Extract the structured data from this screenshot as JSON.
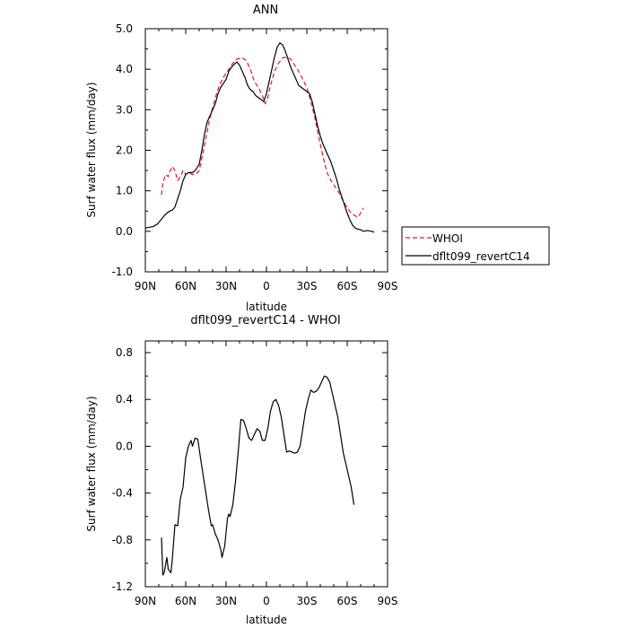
{
  "chart_data": [
    {
      "type": "line",
      "title": "ANN",
      "xlabel": "latitude",
      "ylabel": "Surf water flux (mm/day)",
      "xlim": [
        90,
        -90
      ],
      "ylim": [
        -1.0,
        5.0
      ],
      "x_ticks": [
        {
          "value": 90,
          "label": "90N"
        },
        {
          "value": 60,
          "label": "60N"
        },
        {
          "value": 30,
          "label": "30N"
        },
        {
          "value": 0,
          "label": "0"
        },
        {
          "value": -30,
          "label": "30S"
        },
        {
          "value": -60,
          "label": "60S"
        },
        {
          "value": -90,
          "label": "90S"
        }
      ],
      "y_ticks": [
        {
          "value": -1.0,
          "label": "-1.0"
        },
        {
          "value": 0.0,
          "label": "0.0"
        },
        {
          "value": 1.0,
          "label": "1.0"
        },
        {
          "value": 2.0,
          "label": "2.0"
        },
        {
          "value": 3.0,
          "label": "3.0"
        },
        {
          "value": 4.0,
          "label": "4.0"
        },
        {
          "value": 5.0,
          "label": "5.0"
        }
      ],
      "legend_position": "right, outside plot",
      "series": [
        {
          "name": "WHOI",
          "color": "#e31a1c",
          "dash": "dashed",
          "points": [
            [
              78,
              0.9
            ],
            [
              77,
              1.2
            ],
            [
              75,
              1.4
            ],
            [
              73,
              1.35
            ],
            [
              72,
              1.45
            ],
            [
              70,
              1.6
            ],
            [
              68,
              1.5
            ],
            [
              66,
              1.25
            ],
            [
              64,
              1.35
            ],
            [
              62,
              1.5
            ],
            [
              60,
              1.4
            ],
            [
              58,
              1.45
            ],
            [
              55,
              1.4
            ],
            [
              52,
              1.42
            ],
            [
              50,
              1.5
            ],
            [
              48,
              1.8
            ],
            [
              45,
              2.3
            ],
            [
              42,
              2.8
            ],
            [
              38,
              3.3
            ],
            [
              35,
              3.6
            ],
            [
              32,
              3.8
            ],
            [
              28,
              4.0
            ],
            [
              25,
              4.15
            ],
            [
              22,
              4.25
            ],
            [
              18,
              4.28
            ],
            [
              15,
              4.22
            ],
            [
              12,
              4.0
            ],
            [
              9,
              3.7
            ],
            [
              6,
              3.55
            ],
            [
              3,
              3.35
            ],
            [
              1,
              3.15
            ],
            [
              -1,
              3.3
            ],
            [
              -3,
              3.6
            ],
            [
              -6,
              3.95
            ],
            [
              -9,
              4.15
            ],
            [
              -12,
              4.28
            ],
            [
              -15,
              4.3
            ],
            [
              -18,
              4.25
            ],
            [
              -21,
              4.1
            ],
            [
              -24,
              3.95
            ],
            [
              -27,
              3.75
            ],
            [
              -30,
              3.55
            ],
            [
              -33,
              3.2
            ],
            [
              -36,
              2.8
            ],
            [
              -39,
              2.3
            ],
            [
              -42,
              1.85
            ],
            [
              -45,
              1.45
            ],
            [
              -48,
              1.25
            ],
            [
              -51,
              1.1
            ],
            [
              -54,
              0.95
            ],
            [
              -57,
              0.75
            ],
            [
              -60,
              0.58
            ],
            [
              -63,
              0.45
            ],
            [
              -66,
              0.38
            ],
            [
              -68,
              0.35
            ],
            [
              -70,
              0.45
            ],
            [
              -72,
              0.58
            ]
          ]
        },
        {
          "name": "dflt099_revertC14",
          "color": "#000000",
          "dash": "solid",
          "points": [
            [
              90,
              0.08
            ],
            [
              87,
              0.1
            ],
            [
              84,
              0.12
            ],
            [
              81,
              0.18
            ],
            [
              78,
              0.3
            ],
            [
              75,
              0.42
            ],
            [
              72,
              0.5
            ],
            [
              70,
              0.52
            ],
            [
              68,
              0.6
            ],
            [
              66,
              0.8
            ],
            [
              64,
              1.0
            ],
            [
              62,
              1.25
            ],
            [
              60,
              1.4
            ],
            [
              58,
              1.45
            ],
            [
              55,
              1.45
            ],
            [
              53,
              1.5
            ],
            [
              50,
              1.65
            ],
            [
              48,
              2.0
            ],
            [
              46,
              2.4
            ],
            [
              44,
              2.7
            ],
            [
              42,
              2.85
            ],
            [
              40,
              3.0
            ],
            [
              38,
              3.15
            ],
            [
              36,
              3.4
            ],
            [
              34,
              3.55
            ],
            [
              32,
              3.65
            ],
            [
              30,
              3.75
            ],
            [
              28,
              3.95
            ],
            [
              26,
              4.05
            ],
            [
              24,
              4.12
            ],
            [
              22,
              4.18
            ],
            [
              20,
              4.1
            ],
            [
              18,
              3.95
            ],
            [
              16,
              3.8
            ],
            [
              14,
              3.6
            ],
            [
              12,
              3.5
            ],
            [
              10,
              3.45
            ],
            [
              8,
              3.35
            ],
            [
              6,
              3.3
            ],
            [
              4,
              3.25
            ],
            [
              2,
              3.2
            ],
            [
              0,
              3.4
            ],
            [
              -2,
              3.7
            ],
            [
              -4,
              4.0
            ],
            [
              -6,
              4.3
            ],
            [
              -8,
              4.55
            ],
            [
              -10,
              4.65
            ],
            [
              -12,
              4.6
            ],
            [
              -14,
              4.45
            ],
            [
              -16,
              4.25
            ],
            [
              -18,
              4.05
            ],
            [
              -20,
              3.9
            ],
            [
              -22,
              3.75
            ],
            [
              -24,
              3.6
            ],
            [
              -26,
              3.55
            ],
            [
              -28,
              3.5
            ],
            [
              -30,
              3.45
            ],
            [
              -32,
              3.4
            ],
            [
              -34,
              3.2
            ],
            [
              -36,
              2.9
            ],
            [
              -38,
              2.6
            ],
            [
              -40,
              2.35
            ],
            [
              -42,
              2.15
            ],
            [
              -44,
              2.0
            ],
            [
              -46,
              1.85
            ],
            [
              -48,
              1.7
            ],
            [
              -50,
              1.5
            ],
            [
              -52,
              1.3
            ],
            [
              -54,
              1.05
            ],
            [
              -56,
              0.85
            ],
            [
              -58,
              0.65
            ],
            [
              -60,
              0.45
            ],
            [
              -62,
              0.28
            ],
            [
              -64,
              0.15
            ],
            [
              -66,
              0.08
            ],
            [
              -68,
              0.05
            ],
            [
              -70,
              0.04
            ],
            [
              -72,
              0.0
            ],
            [
              -75,
              0.02
            ],
            [
              -78,
              0.0
            ],
            [
              -80,
              -0.02
            ]
          ]
        }
      ]
    },
    {
      "type": "line",
      "title": "dflt099_revertC14 - WHOI",
      "xlabel": "latitude",
      "ylabel": "Surf water flux (mm/day)",
      "xlim": [
        90,
        -90
      ],
      "ylim": [
        -1.2,
        0.9
      ],
      "x_ticks": [
        {
          "value": 90,
          "label": "90N"
        },
        {
          "value": 60,
          "label": "60N"
        },
        {
          "value": 30,
          "label": "30N"
        },
        {
          "value": 0,
          "label": "0"
        },
        {
          "value": -30,
          "label": "30S"
        },
        {
          "value": -60,
          "label": "60S"
        },
        {
          "value": -90,
          "label": "90S"
        }
      ],
      "y_ticks": [
        {
          "value": -1.2,
          "label": "-1.2"
        },
        {
          "value": -0.8,
          "label": "-0.8"
        },
        {
          "value": -0.4,
          "label": "-0.4"
        },
        {
          "value": 0.0,
          "label": "0.0"
        },
        {
          "value": 0.4,
          "label": "0.4"
        },
        {
          "value": 0.8,
          "label": "0.8"
        }
      ],
      "series": [
        {
          "color": "#000000",
          "dash": "solid",
          "points": [
            [
              78,
              -0.78
            ],
            [
              77,
              -1.1
            ],
            [
              76,
              -1.08
            ],
            [
              74,
              -0.95
            ],
            [
              73,
              -1.05
            ],
            [
              71,
              -1.08
            ],
            [
              70,
              -0.97
            ],
            [
              68,
              -0.67
            ],
            [
              66,
              -0.68
            ],
            [
              64,
              -0.45
            ],
            [
              62,
              -0.35
            ],
            [
              60,
              -0.1
            ],
            [
              58,
              0.0
            ],
            [
              56,
              0.05
            ],
            [
              55,
              0.0
            ],
            [
              53,
              0.07
            ],
            [
              51,
              0.06
            ],
            [
              49,
              -0.1
            ],
            [
              47,
              -0.25
            ],
            [
              45,
              -0.4
            ],
            [
              43,
              -0.55
            ],
            [
              41,
              -0.68
            ],
            [
              40,
              -0.67
            ],
            [
              38,
              -0.75
            ],
            [
              36,
              -0.8
            ],
            [
              34,
              -0.88
            ],
            [
              33,
              -0.95
            ],
            [
              31,
              -0.85
            ],
            [
              29,
              -0.62
            ],
            [
              28,
              -0.58
            ],
            [
              27,
              -0.6
            ],
            [
              25,
              -0.5
            ],
            [
              23,
              -0.3
            ],
            [
              21,
              -0.05
            ],
            [
              19,
              0.23
            ],
            [
              17,
              0.22
            ],
            [
              15,
              0.15
            ],
            [
              13,
              0.07
            ],
            [
              11,
              0.05
            ],
            [
              9,
              0.1
            ],
            [
              7,
              0.15
            ],
            [
              5,
              0.13
            ],
            [
              3,
              0.05
            ],
            [
              1,
              0.05
            ],
            [
              -1,
              0.15
            ],
            [
              -3,
              0.3
            ],
            [
              -5,
              0.38
            ],
            [
              -7,
              0.4
            ],
            [
              -9,
              0.35
            ],
            [
              -11,
              0.25
            ],
            [
              -13,
              0.1
            ],
            [
              -15,
              -0.05
            ],
            [
              -17,
              -0.04
            ],
            [
              -19,
              -0.05
            ],
            [
              -21,
              -0.06
            ],
            [
              -23,
              -0.05
            ],
            [
              -25,
              0.0
            ],
            [
              -27,
              0.15
            ],
            [
              -29,
              0.3
            ],
            [
              -31,
              0.4
            ],
            [
              -33,
              0.48
            ],
            [
              -35,
              0.46
            ],
            [
              -37,
              0.47
            ],
            [
              -39,
              0.5
            ],
            [
              -41,
              0.55
            ],
            [
              -43,
              0.6
            ],
            [
              -45,
              0.59
            ],
            [
              -47,
              0.55
            ],
            [
              -49,
              0.45
            ],
            [
              -51,
              0.35
            ],
            [
              -53,
              0.25
            ],
            [
              -55,
              0.1
            ],
            [
              -57,
              -0.05
            ],
            [
              -59,
              -0.15
            ],
            [
              -61,
              -0.25
            ],
            [
              -63,
              -0.35
            ],
            [
              -65,
              -0.5
            ]
          ]
        }
      ]
    }
  ]
}
